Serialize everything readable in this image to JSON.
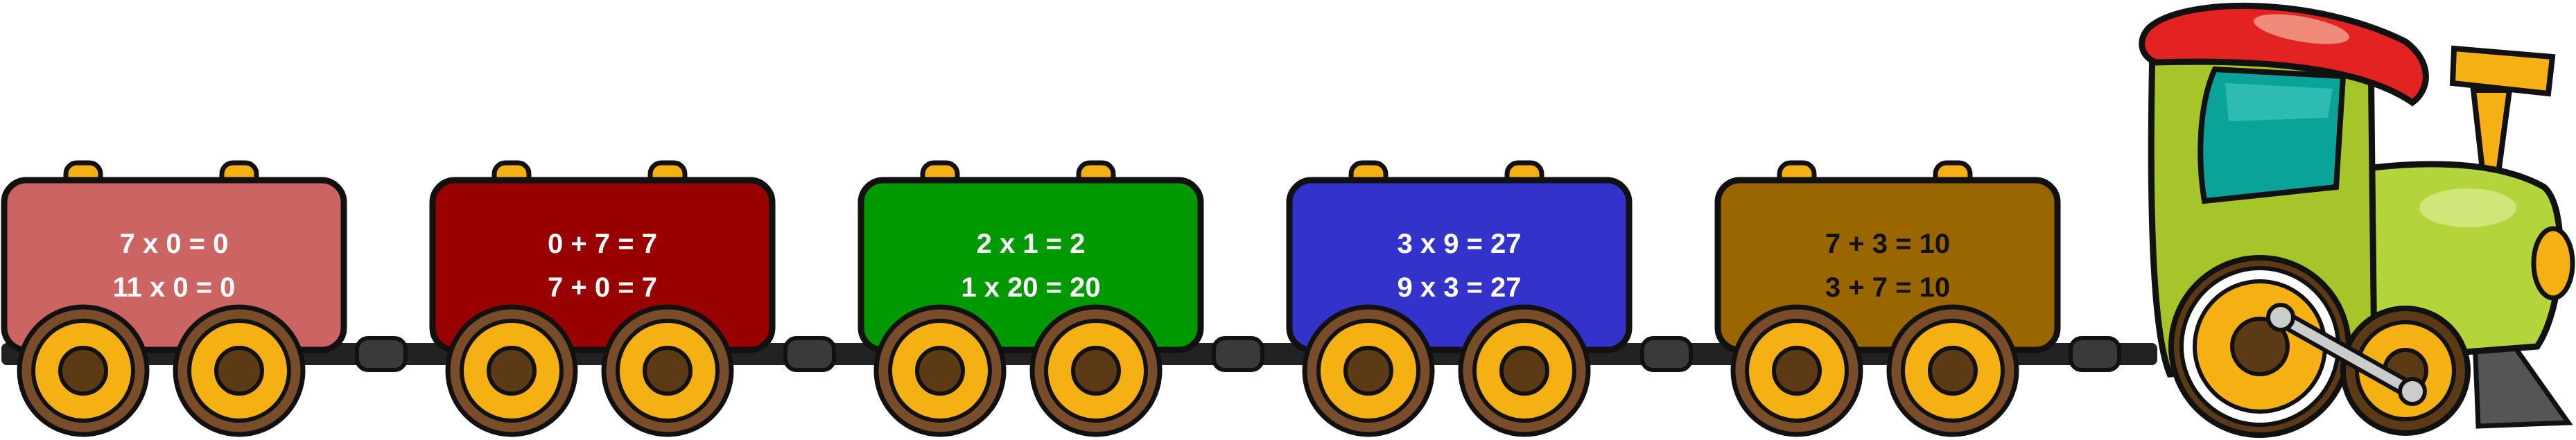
{
  "train": {
    "cars": [
      {
        "color": "#cd6464",
        "text_color": "#ffffff",
        "line1": "7 x 0 = 0",
        "line2": "11 x 0 = 0"
      },
      {
        "color": "#990000",
        "text_color": "#ffffff",
        "line1": "0 + 7 = 7",
        "line2": "7 + 0 = 7"
      },
      {
        "color": "#009900",
        "text_color": "#ffffff",
        "line1": "2 x 1 = 2",
        "line2": "1 x 20 = 20"
      },
      {
        "color": "#3333cc",
        "text_color": "#ffffff",
        "line1": "3 x 9 = 27",
        "line2": "9 x 3 = 27"
      },
      {
        "color": "#996600",
        "text_color": "#111111",
        "line1": "7 + 3 = 10",
        "line2": "3 + 7 = 10"
      }
    ],
    "locomotive": {
      "body_color": "#a6c52a",
      "roof_color": "#e32222",
      "window_color": "#0aa39a",
      "chimney_color": "#f5b013",
      "icon": "locomotive-icon"
    },
    "colors": {
      "wheel_tire": "#f5b013",
      "wheel_rim": "#7a4d2a",
      "wheel_hub": "#5c3a15",
      "hook": "#f5b013",
      "outline": "#111111",
      "rail": "#222222",
      "coupler": "#3a3a3a"
    }
  }
}
